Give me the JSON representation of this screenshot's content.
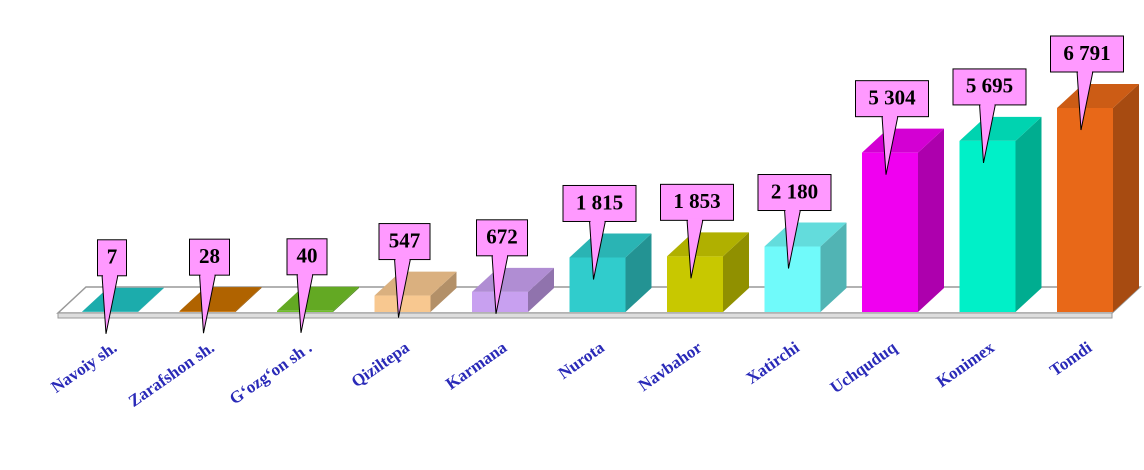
{
  "chart_data": {
    "type": "bar3d",
    "categories": [
      "Navoiy sh.",
      "Zarafshon sh.",
      "G‘ozg‘on sh .",
      "Qiziltepa",
      "Karmana",
      "Nurota",
      "Navbahor",
      "Xatirchi",
      "Uchquduq",
      "Konimex",
      "Tomdi"
    ],
    "values": [
      7,
      28,
      40,
      547,
      672,
      1815,
      1853,
      2180,
      5304,
      5695,
      6791
    ],
    "value_labels": [
      "7",
      "28",
      "40",
      "547",
      "672",
      "1 815",
      "1 853",
      "2 180",
      "5 304",
      "5 695",
      "6 791"
    ],
    "colors": [
      "#20c4c4",
      "#c87000",
      "#70c028",
      "#f8c890",
      "#c8a0f0",
      "#30cccc",
      "#c8c800",
      "#70fafa",
      "#f000f0",
      "#00f0c8",
      "#e86818"
    ],
    "label_color": "#ff99ff"
  }
}
